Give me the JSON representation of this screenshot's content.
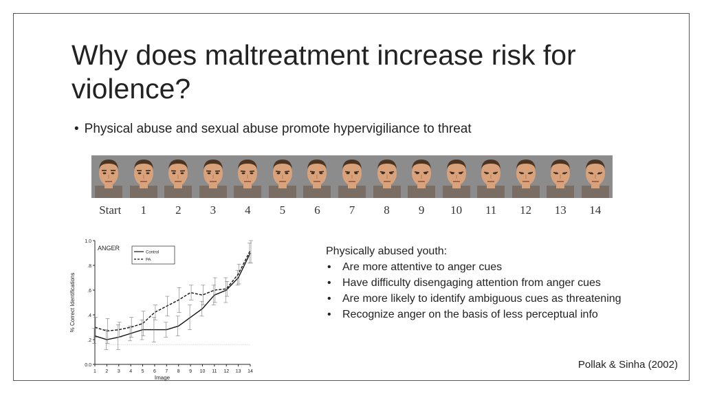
{
  "slide": {
    "title": "Why does maltreatment increase risk for violence?",
    "bullet": "Physical abuse and sexual abuse promote hypervigiliance to threat",
    "citation": "Pollak & Sinha (2002)"
  },
  "faces": {
    "labels": [
      "Start",
      "1",
      "2",
      "3",
      "4",
      "5",
      "6",
      "7",
      "8",
      "9",
      "10",
      "11",
      "12",
      "13",
      "14"
    ]
  },
  "findings": {
    "heading": "Physically abused youth:",
    "items": [
      "Are more attentive to anger cues",
      "Have difficulty disengaging attention from anger cues",
      "Are more likely to identify ambiguous cues as threatening",
      "Recognize anger on the basis of less perceptual info"
    ]
  },
  "chart_data": {
    "type": "line",
    "title": "ANGER",
    "xlabel": "Image",
    "ylabel": "% Correct Identifications",
    "x": [
      1,
      2,
      3,
      4,
      5,
      6,
      7,
      8,
      9,
      10,
      11,
      12,
      13,
      14
    ],
    "xlim": [
      1,
      14
    ],
    "ylim": [
      0,
      1
    ],
    "yticks": [
      "0.0",
      ".2",
      ".4",
      ".6",
      ".8",
      "1.0"
    ],
    "legend_position": "top-center",
    "series": [
      {
        "name": "Control",
        "style": "solid",
        "values": [
          0.23,
          0.2,
          0.22,
          0.25,
          0.28,
          0.28,
          0.28,
          0.31,
          0.38,
          0.45,
          0.56,
          0.6,
          0.7,
          0.9
        ]
      },
      {
        "name": "PA",
        "style": "dashed",
        "values": [
          0.3,
          0.27,
          0.28,
          0.3,
          0.33,
          0.42,
          0.47,
          0.52,
          0.58,
          0.56,
          0.6,
          0.61,
          0.73,
          0.92
        ]
      }
    ],
    "reference_line": {
      "y": 0.16,
      "style": "dotted"
    }
  },
  "colors": {
    "text": "#222222",
    "frame": "#555555",
    "face_background": "#8c8c8c",
    "skin": "#d9a27a",
    "hair": "#4a3424"
  }
}
